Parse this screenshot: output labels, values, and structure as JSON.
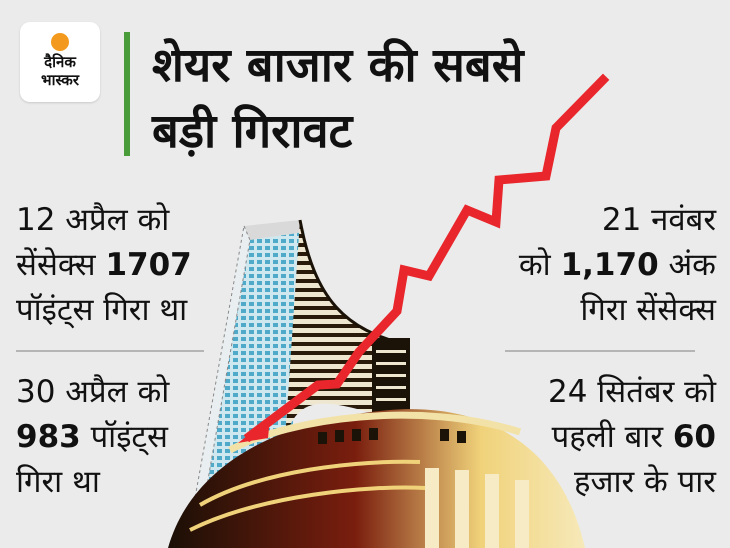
{
  "logo": {
    "line1": "दैनिक",
    "line2": "भास्कर",
    "accent_color": "#f39a1e"
  },
  "headline": {
    "line1": "शेयर बाजार की सबसे",
    "line2": "बड़ी गिरावट",
    "bar_color": "#4a9b3a"
  },
  "stats": [
    {
      "lines": [
        {
          "pre": "12 अप्रैल को",
          "num": "",
          "post": ""
        },
        {
          "pre": "सेंसेक्स ",
          "num": "1707",
          "post": ""
        },
        {
          "pre": "पॉइंट्स गिरा था",
          "num": "",
          "post": ""
        }
      ]
    },
    {
      "lines": [
        {
          "pre": "30 अप्रैल को",
          "num": "",
          "post": ""
        },
        {
          "pre": "",
          "num": "983",
          "post": " पॉइंट्स"
        },
        {
          "pre": "गिरा था",
          "num": "",
          "post": ""
        }
      ]
    },
    {
      "lines": [
        {
          "pre": "21 नवंबर",
          "num": "",
          "post": ""
        },
        {
          "pre": "को ",
          "num": "1,170",
          "post": " अंक"
        },
        {
          "pre": "गिरा सेंसेक्स",
          "num": "",
          "post": ""
        }
      ]
    },
    {
      "lines": [
        {
          "pre": "24 सितंबर को",
          "num": "",
          "post": ""
        },
        {
          "pre": "पहली बार ",
          "num": "60",
          "post": ""
        },
        {
          "pre": "हजार के पार",
          "num": "",
          "post": ""
        }
      ]
    }
  ],
  "arrow_color": "#e8262b"
}
